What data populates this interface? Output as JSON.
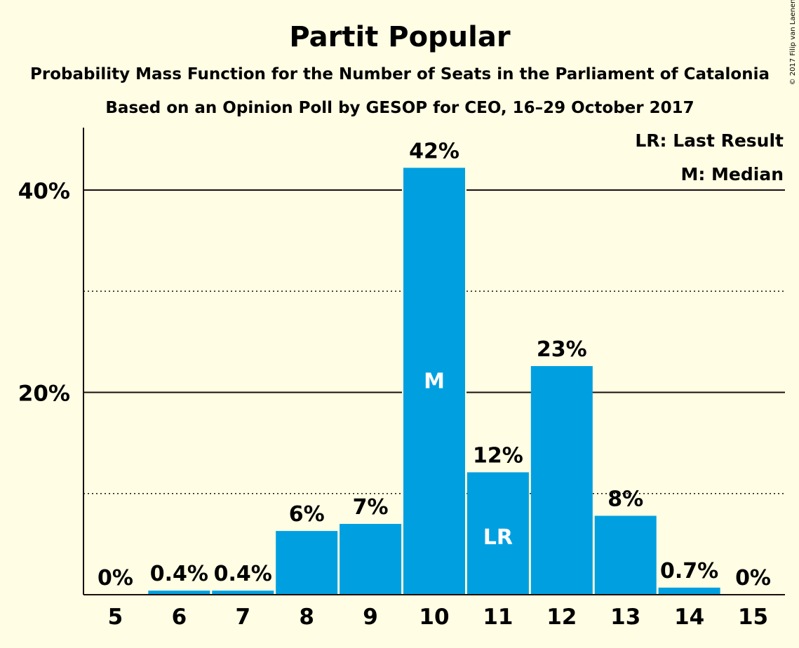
{
  "copyright": "© 2017 Filip van Laenen",
  "legend": {
    "last_result": "LR: Last Result",
    "median": "M: Median"
  },
  "colors": {
    "bar": "#00A0E0",
    "background": "#FFFDE3",
    "text": "#1a0d0d"
  },
  "chart_data": {
    "type": "bar",
    "title": "Partit Popular",
    "subtitle": "Probability Mass Function for the Number of Seats in the Parliament of Catalonia",
    "subtitle2": "Based on an Opinion Poll by GESOP for CEO, 16–29 October 2017",
    "xlabel": "",
    "ylabel": "",
    "categories": [
      "5",
      "6",
      "7",
      "8",
      "9",
      "10",
      "11",
      "12",
      "13",
      "14",
      "15"
    ],
    "values": [
      0,
      0.4,
      0.4,
      6.3,
      7.0,
      42.2,
      12.1,
      22.6,
      7.8,
      0.7,
      0
    ],
    "labels": [
      "0%",
      "0.4%",
      "0.4%",
      "6%",
      "7%",
      "42%",
      "12%",
      "23%",
      "8%",
      "0.7%",
      "0%"
    ],
    "markers": {
      "10": "M",
      "11": "LR"
    },
    "yticks": [
      {
        "value": 20,
        "label": "20%"
      },
      {
        "value": 40,
        "label": "40%"
      }
    ],
    "minor_gridlines": [
      10,
      30
    ],
    "ylim": [
      0,
      46
    ],
    "grid": true,
    "legend_position": "top-right"
  }
}
